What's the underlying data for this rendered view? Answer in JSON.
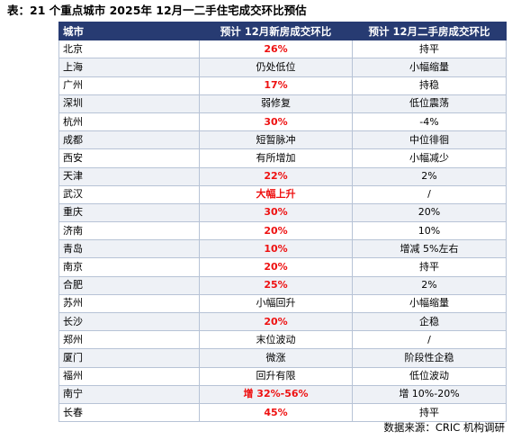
{
  "title": "表：21 个重点城市 2025年 12月一二手住宅成交环比预估",
  "headers": {
    "city": "城市",
    "new_home": "预计 12月新房成交环比",
    "second_hand": "预计 12月二手房成交环比"
  },
  "rows": [
    {
      "city": "北京",
      "new_home": "26%",
      "second_hand": "持平",
      "new_emphasis": true
    },
    {
      "city": "上海",
      "new_home": "仍处低位",
      "second_hand": "小幅缩量",
      "new_emphasis": false
    },
    {
      "city": "广州",
      "new_home": "17%",
      "second_hand": "持稳",
      "new_emphasis": true
    },
    {
      "city": "深圳",
      "new_home": "弱修复",
      "second_hand": "低位震荡",
      "new_emphasis": false
    },
    {
      "city": "杭州",
      "new_home": "30%",
      "second_hand": "-4%",
      "new_emphasis": true
    },
    {
      "city": "成都",
      "new_home": "短暂脉冲",
      "second_hand": "中位徘徊",
      "new_emphasis": false
    },
    {
      "city": "西安",
      "new_home": "有所增加",
      "second_hand": "小幅减少",
      "new_emphasis": false
    },
    {
      "city": "天津",
      "new_home": "22%",
      "second_hand": "2%",
      "new_emphasis": true
    },
    {
      "city": "武汉",
      "new_home": "大幅上升",
      "second_hand": "/",
      "new_emphasis": true
    },
    {
      "city": "重庆",
      "new_home": "30%",
      "second_hand": "20%",
      "new_emphasis": true
    },
    {
      "city": "济南",
      "new_home": "20%",
      "second_hand": "10%",
      "new_emphasis": true
    },
    {
      "city": "青岛",
      "new_home": "10%",
      "second_hand": "增减 5%左右",
      "new_emphasis": true
    },
    {
      "city": "南京",
      "new_home": "20%",
      "second_hand": "持平",
      "new_emphasis": true
    },
    {
      "city": "合肥",
      "new_home": "25%",
      "second_hand": "2%",
      "new_emphasis": true
    },
    {
      "city": "苏州",
      "new_home": "小幅回升",
      "second_hand": "小幅缩量",
      "new_emphasis": false
    },
    {
      "city": "长沙",
      "new_home": "20%",
      "second_hand": "企稳",
      "new_emphasis": true
    },
    {
      "city": "郑州",
      "new_home": "末位波动",
      "second_hand": "/",
      "new_emphasis": false
    },
    {
      "city": "厦门",
      "new_home": "微涨",
      "second_hand": "阶段性企稳",
      "new_emphasis": false
    },
    {
      "city": "福州",
      "new_home": "回升有限",
      "second_hand": "低位波动",
      "new_emphasis": false
    },
    {
      "city": "南宁",
      "new_home": "增 32%-56%",
      "second_hand": "增 10%-20%",
      "new_emphasis": true
    },
    {
      "city": "长春",
      "new_home": "45%",
      "second_hand": "持平",
      "new_emphasis": true
    }
  ],
  "source": "数据来源：CRIC 机构调研",
  "colors": {
    "header_bg": "#273b72",
    "header_text": "#ffffff",
    "emphasis_text": "#ee1111",
    "alt_row_bg": "#eef1f6",
    "border": "#b7c3d6"
  }
}
